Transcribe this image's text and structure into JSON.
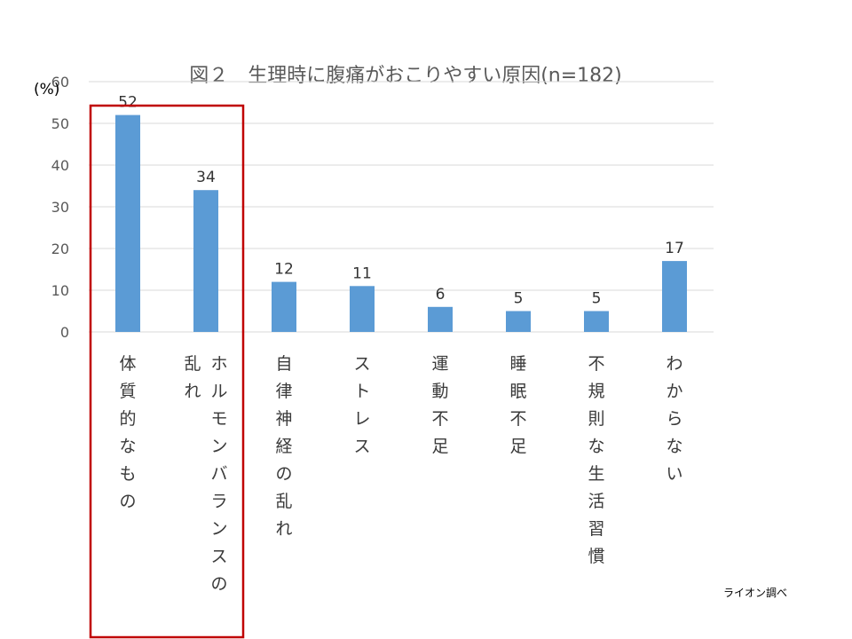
{
  "chart_data": {
    "type": "bar",
    "title": "図２　生理時に腹痛がおこりやすい原因(n=182)",
    "ylabel": "(%)",
    "xlabel": "",
    "ylim": [
      0,
      60
    ],
    "yticks": [
      0,
      10,
      20,
      30,
      40,
      50,
      60
    ],
    "grid": true,
    "legend": "none",
    "categories": [
      "体質的なもの",
      "ホルモンバランスの乱れ",
      "自律神経の乱れ",
      "ストレス",
      "運動不足",
      "睡眠不足",
      "不規則な生活習慣",
      "わからない"
    ],
    "category_columns": [
      [
        "体質的なもの"
      ],
      [
        "ホルモンバランスの",
        "乱れ"
      ],
      [
        "自律神経の乱れ"
      ],
      [
        "ストレス"
      ],
      [
        "運動不足"
      ],
      [
        "睡眠不足"
      ],
      [
        "不規則な生活習慣"
      ],
      [
        "わからない"
      ]
    ],
    "values": [
      52,
      34,
      12,
      11,
      6,
      5,
      5,
      17
    ],
    "bar_color": "#5b9bd5",
    "highlight_color": "#c00000",
    "highlight_categories": [
      "体質的なもの",
      "ホルモンバランスの乱れ"
    ],
    "source": "ライオン調べ"
  }
}
